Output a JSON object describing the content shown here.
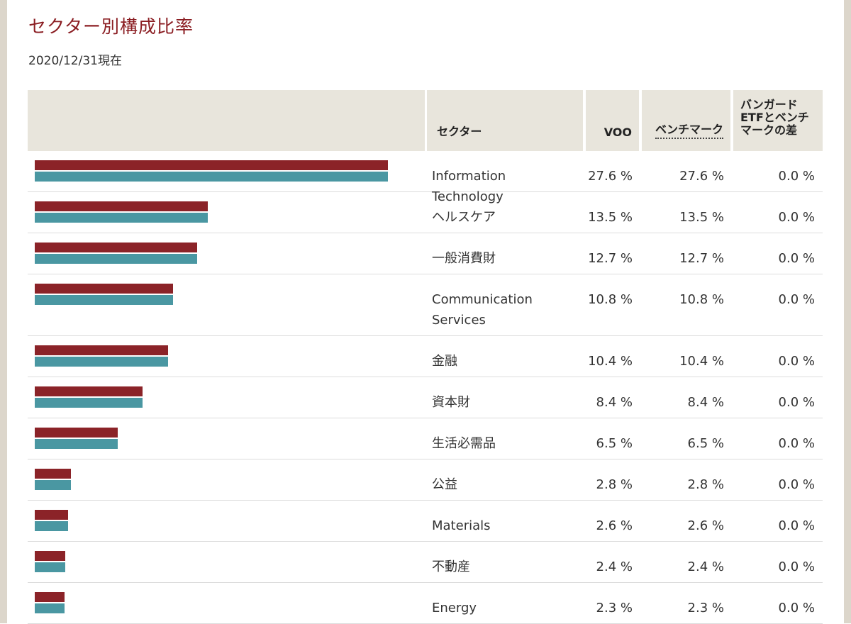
{
  "title": "セクター別構成比率",
  "as_of": "2020/12/31現在",
  "headers": {
    "bar": "",
    "sector": "セクター",
    "voo": "VOO",
    "benchmark": "ベンチマーク",
    "difference": "バンガードETFとベンチマークの差"
  },
  "colors": {
    "voo": "#8b2328",
    "benchmark": "#4a97a2",
    "title": "#8b1e23",
    "header_bg": "#e8e5dc"
  },
  "rows": [
    {
      "sector": "Information Technology",
      "voo": "27.6 %",
      "benchmark": "27.6 %",
      "difference": "0.0 %"
    },
    {
      "sector": "ヘルスケア",
      "voo": "13.5 %",
      "benchmark": "13.5 %",
      "difference": "0.0 %"
    },
    {
      "sector": "一般消費財",
      "voo": "12.7 %",
      "benchmark": "12.7 %",
      "difference": "0.0 %"
    },
    {
      "sector": "Communication Services",
      "voo": "10.8 %",
      "benchmark": "10.8 %",
      "difference": "0.0 %"
    },
    {
      "sector": "金融",
      "voo": "10.4 %",
      "benchmark": "10.4 %",
      "difference": "0.0 %"
    },
    {
      "sector": "資本財",
      "voo": "8.4 %",
      "benchmark": "8.4 %",
      "difference": "0.0 %"
    },
    {
      "sector": "生活必需品",
      "voo": "6.5 %",
      "benchmark": "6.5 %",
      "difference": "0.0 %"
    },
    {
      "sector": "公益",
      "voo": "2.8 %",
      "benchmark": "2.8 %",
      "difference": "0.0 %"
    },
    {
      "sector": "Materials",
      "voo": "2.6 %",
      "benchmark": "2.6 %",
      "difference": "0.0 %"
    },
    {
      "sector": "不動産",
      "voo": "2.4 %",
      "benchmark": "2.4 %",
      "difference": "0.0 %"
    },
    {
      "sector": "Energy",
      "voo": "2.3 %",
      "benchmark": "2.3 %",
      "difference": "0.0 %"
    }
  ],
  "chart_data": {
    "type": "bar",
    "orientation": "horizontal",
    "categories": [
      "Information Technology",
      "ヘルスケア",
      "一般消費財",
      "Communication Services",
      "金融",
      "資本財",
      "生活必需品",
      "公益",
      "Materials",
      "不動産",
      "Energy"
    ],
    "series": [
      {
        "name": "VOO",
        "values": [
          27.6,
          13.5,
          12.7,
          10.8,
          10.4,
          8.4,
          6.5,
          2.8,
          2.6,
          2.4,
          2.3
        ]
      },
      {
        "name": "ベンチマーク",
        "values": [
          27.6,
          13.5,
          12.7,
          10.8,
          10.4,
          8.4,
          6.5,
          2.8,
          2.6,
          2.4,
          2.3
        ]
      }
    ],
    "xlim": [
      0,
      27.6
    ]
  }
}
